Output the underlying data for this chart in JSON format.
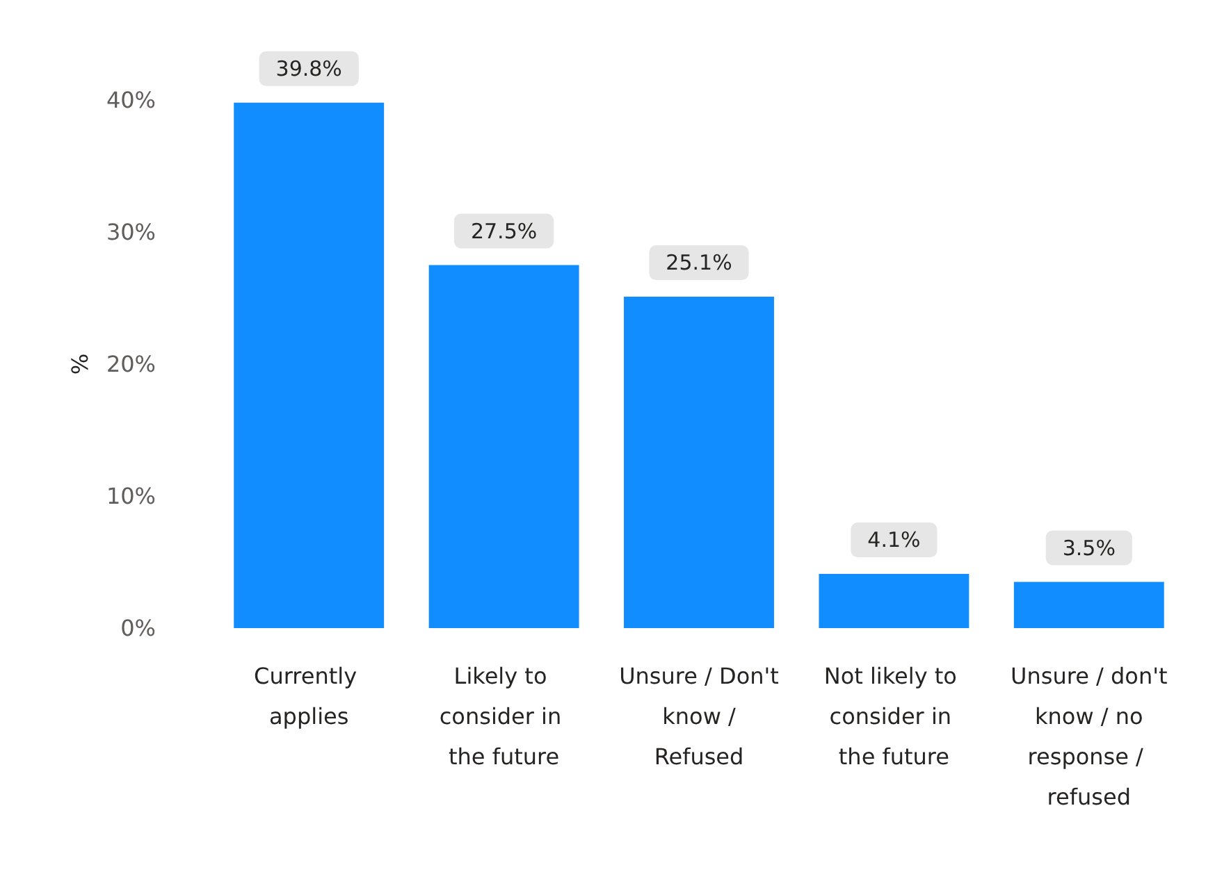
{
  "chart_data": {
    "type": "bar",
    "ylabel": "%",
    "categories": [
      "Currently applies",
      "Likely to consider in the future",
      "Unsure / Don't know / Refused",
      "Not likely to consider in the future",
      "Unsure / don't know / no response / refused"
    ],
    "values": [
      39.8,
      27.5,
      25.1,
      4.1,
      3.5
    ],
    "value_labels": [
      "39.8%",
      "27.5%",
      "25.1%",
      "4.1%",
      "3.5%"
    ],
    "color": "#118dff",
    "ylim": [
      0,
      40
    ],
    "yticks": [
      {
        "value": 0,
        "label": "0%"
      },
      {
        "value": 10,
        "label": "10%"
      },
      {
        "value": 20,
        "label": "20%"
      },
      {
        "value": 30,
        "label": "30%"
      },
      {
        "value": 40,
        "label": "40%"
      }
    ],
    "grid": false
  }
}
